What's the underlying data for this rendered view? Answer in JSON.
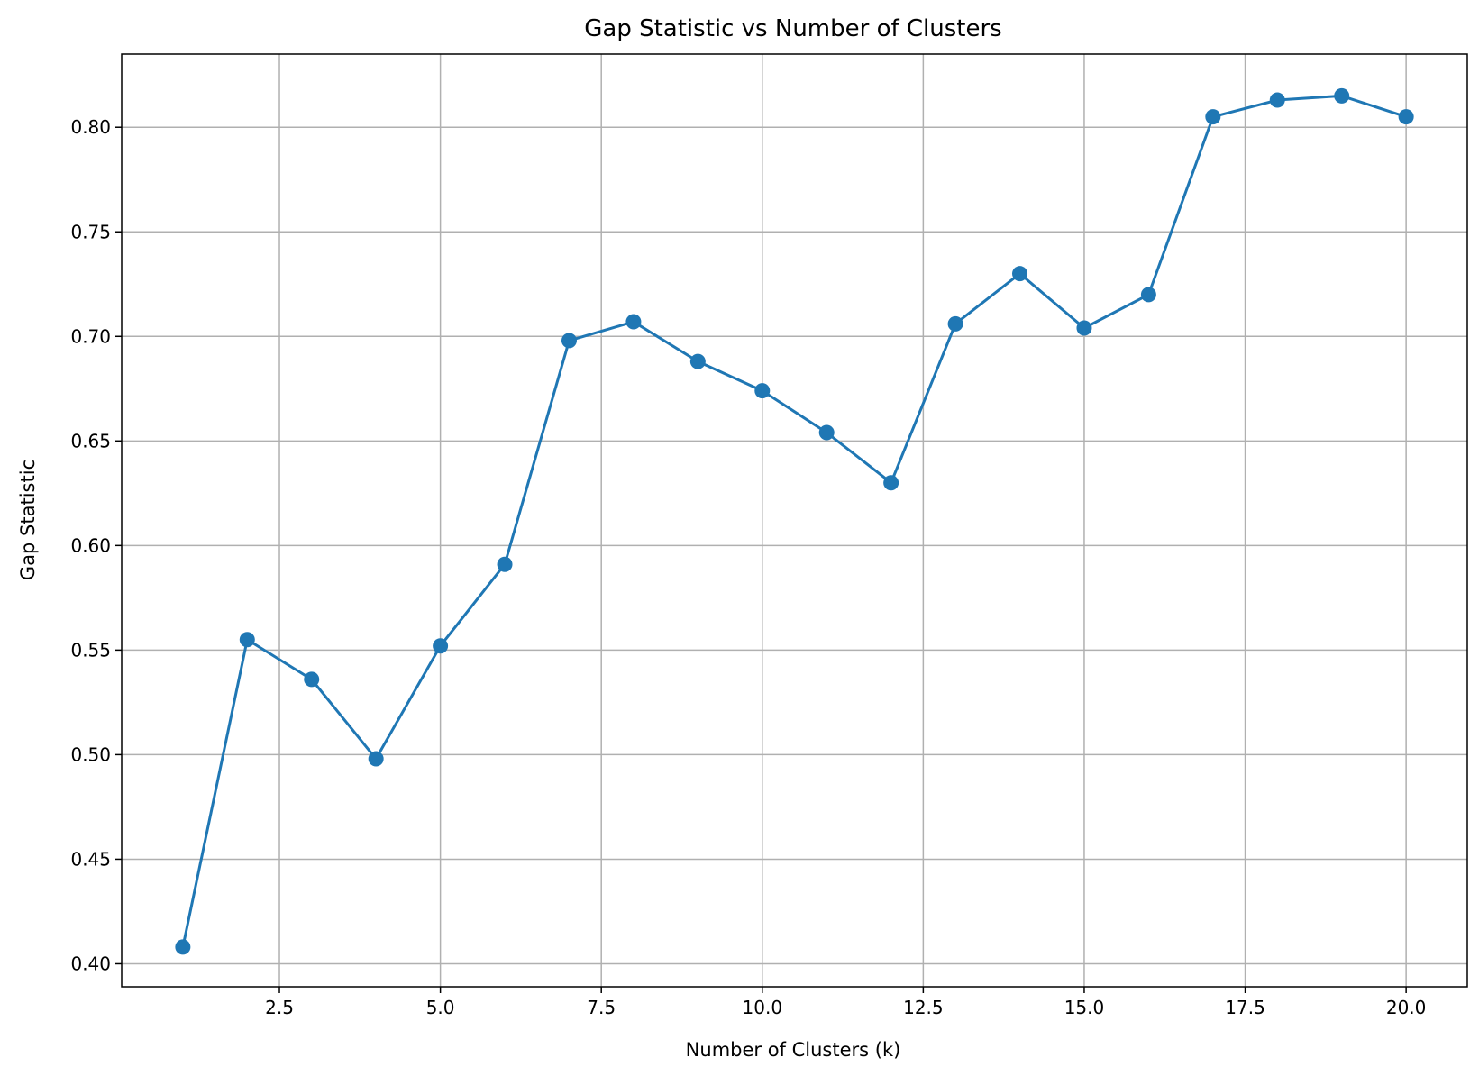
{
  "chart_data": {
    "type": "line",
    "title": "Gap Statistic vs Number of Clusters",
    "xlabel": "Number of Clusters (k)",
    "ylabel": "Gap Statistic",
    "xlim": [
      0.05,
      20.95
    ],
    "ylim": [
      0.389,
      0.835
    ],
    "xticks": [
      2.5,
      5.0,
      7.5,
      10.0,
      12.5,
      15.0,
      17.5,
      20.0
    ],
    "xtick_labels": [
      "2.5",
      "5.0",
      "7.5",
      "10.0",
      "12.5",
      "15.0",
      "17.5",
      "20.0"
    ],
    "yticks": [
      0.4,
      0.45,
      0.5,
      0.55,
      0.6,
      0.65,
      0.7,
      0.75,
      0.8
    ],
    "ytick_labels": [
      "0.40",
      "0.45",
      "0.50",
      "0.55",
      "0.60",
      "0.65",
      "0.70",
      "0.75",
      "0.80"
    ],
    "grid": true,
    "marker": "circle",
    "color": "#1f77b4",
    "x": [
      1,
      2,
      3,
      4,
      5,
      6,
      7,
      8,
      9,
      10,
      11,
      12,
      13,
      14,
      15,
      16,
      17,
      18,
      19,
      20
    ],
    "y": [
      0.408,
      0.555,
      0.536,
      0.498,
      0.552,
      0.591,
      0.698,
      0.707,
      0.688,
      0.674,
      0.654,
      0.63,
      0.706,
      0.73,
      0.704,
      0.72,
      0.805,
      0.813,
      0.815,
      0.805
    ]
  }
}
